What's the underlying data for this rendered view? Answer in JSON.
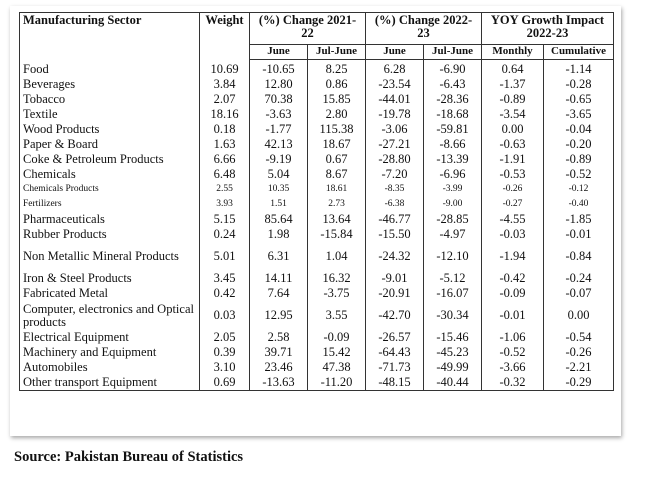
{
  "header": {
    "sector": "Manufacturing Sector",
    "weight": "Weight",
    "group1": "(%) Change 2021-22",
    "group2": "(%) Change 2022-23",
    "group3": "YOY Growth Impact 2022-23",
    "sub": [
      "June",
      "Jul-June",
      "June",
      "Jul-June",
      "Monthly",
      "Cumulative"
    ]
  },
  "rows": [
    {
      "name": "Food",
      "weight": "10.69",
      "c1": "-10.65",
      "c2": "8.25",
      "c3": "6.28",
      "c4": "-6.90",
      "c5": "0.64",
      "c6": "-1.14"
    },
    {
      "name": "Beverages",
      "weight": "3.84",
      "c1": "12.80",
      "c2": "0.86",
      "c3": "-23.54",
      "c4": "-6.43",
      "c5": "-1.37",
      "c6": "-0.28"
    },
    {
      "name": "Tobacco",
      "weight": "2.07",
      "c1": "70.38",
      "c2": "15.85",
      "c3": "-44.01",
      "c4": "-28.36",
      "c5": "-0.89",
      "c6": "-0.65"
    },
    {
      "name": "Textile",
      "weight": "18.16",
      "c1": "-3.63",
      "c2": "2.80",
      "c3": "-19.78",
      "c4": "-18.68",
      "c5": "-3.54",
      "c6": "-3.65"
    },
    {
      "name": "Wood Products",
      "weight": "0.18",
      "c1": "-1.77",
      "c2": "115.38",
      "c3": "-3.06",
      "c4": "-59.81",
      "c5": "0.00",
      "c6": "-0.04"
    },
    {
      "name": "Paper & Board",
      "weight": "1.63",
      "c1": "42.13",
      "c2": "18.67",
      "c3": "-27.21",
      "c4": "-8.66",
      "c5": "-0.63",
      "c6": "-0.20"
    },
    {
      "name": "Coke & Petroleum Products",
      "weight": "6.66",
      "c1": "-9.19",
      "c2": "0.67",
      "c3": "-28.80",
      "c4": "-13.39",
      "c5": "-1.91",
      "c6": "-0.89"
    },
    {
      "name": "Chemicals",
      "weight": "6.48",
      "c1": "5.04",
      "c2": "8.67",
      "c3": "-7.20",
      "c4": "-6.96",
      "c5": "-0.53",
      "c6": "-0.52"
    },
    {
      "name": "Chemicals Products",
      "weight": "2.55",
      "c1": "10.35",
      "c2": "18.61",
      "c3": "-8.35",
      "c4": "-3.99",
      "c5": "-0.26",
      "c6": "-0.12",
      "small": true
    },
    {
      "name": "Fertilizers",
      "weight": "3.93",
      "c1": "1.51",
      "c2": "2.73",
      "c3": "-6.38",
      "c4": "-9.00",
      "c5": "-0.27",
      "c6": "-0.40",
      "small": true
    },
    {
      "name": "Pharmaceuticals",
      "weight": "5.15",
      "c1": "85.64",
      "c2": "13.64",
      "c3": "-46.77",
      "c4": "-28.85",
      "c5": "-4.55",
      "c6": "-1.85"
    },
    {
      "name": "Rubber Products",
      "weight": "0.24",
      "c1": "1.98",
      "c2": "-15.84",
      "c3": "-15.50",
      "c4": "-4.97",
      "c5": "-0.03",
      "c6": "-0.01"
    },
    {
      "name": "Non Metallic Mineral Products",
      "weight": "5.01",
      "c1": "6.31",
      "c2": "1.04",
      "c3": "-24.32",
      "c4": "-12.10",
      "c5": "-1.94",
      "c6": "-0.84",
      "two": true
    },
    {
      "name": "Iron & Steel Products",
      "weight": "3.45",
      "c1": "14.11",
      "c2": "16.32",
      "c3": "-9.01",
      "c4": "-5.12",
      "c5": "-0.42",
      "c6": "-0.24"
    },
    {
      "name": "Fabricated Metal",
      "weight": "0.42",
      "c1": "7.64",
      "c2": "-3.75",
      "c3": "-20.91",
      "c4": "-16.07",
      "c5": "-0.09",
      "c6": "-0.07"
    },
    {
      "name": "Computer, electronics and Optical products",
      "weight": "0.03",
      "c1": "12.95",
      "c2": "3.55",
      "c3": "-42.70",
      "c4": "-30.34",
      "c5": "-0.01",
      "c6": "0.00",
      "two": true
    },
    {
      "name": "Electrical Equipment",
      "weight": "2.05",
      "c1": "2.58",
      "c2": "-0.09",
      "c3": "-26.57",
      "c4": "-15.46",
      "c5": "-1.06",
      "c6": "-0.54"
    },
    {
      "name": "Machinery and  Equipment",
      "weight": "0.39",
      "c1": "39.71",
      "c2": "15.42",
      "c3": "-64.43",
      "c4": "-45.23",
      "c5": "-0.52",
      "c6": "-0.26"
    },
    {
      "name": "Automobiles",
      "weight": "3.10",
      "c1": "23.46",
      "c2": "47.38",
      "c3": "-71.73",
      "c4": "-49.99",
      "c5": "-3.66",
      "c6": "-2.21"
    },
    {
      "name": "Other transport  Equipment",
      "weight": "0.69",
      "c1": "-13.63",
      "c2": "-11.20",
      "c3": "-48.15",
      "c4": "-40.44",
      "c5": "-0.32",
      "c6": "-0.29"
    }
  ],
  "source": "Source: Pakistan Bureau of Statistics"
}
